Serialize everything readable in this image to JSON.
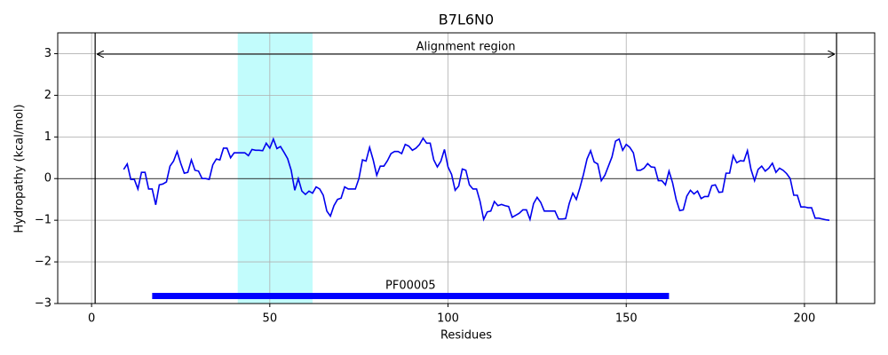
{
  "chart_data": {
    "type": "line",
    "title": "B7L6N0",
    "x_label": "Residues",
    "y_label": "Hydropathy (kcal/mol)",
    "x": [
      9,
      10,
      11,
      12,
      13,
      14,
      15,
      16,
      17,
      18,
      19,
      20,
      21,
      22,
      23,
      24,
      25,
      26,
      27,
      28,
      29,
      30,
      31,
      32,
      33,
      34,
      35,
      36,
      37,
      38,
      39,
      40,
      41,
      42,
      43,
      44,
      45,
      46,
      47,
      48,
      49,
      50,
      51,
      52,
      53,
      54,
      55,
      56,
      57,
      58,
      59,
      60,
      61,
      62,
      63,
      64,
      65,
      66,
      67,
      68,
      69,
      70,
      71,
      72,
      73,
      74,
      75,
      76,
      77,
      78,
      79,
      80,
      81,
      82,
      83,
      84,
      85,
      86,
      87,
      88,
      89,
      90,
      91,
      92,
      93,
      94,
      95,
      96,
      97,
      98,
      99,
      100,
      101,
      102,
      103,
      104,
      105,
      106,
      107,
      108,
      109,
      110,
      111,
      112,
      113,
      114,
      115,
      116,
      117,
      118,
      119,
      120,
      121,
      122,
      123,
      124,
      125,
      126,
      127,
      128,
      129,
      130,
      131,
      132,
      133,
      134,
      135,
      136,
      137,
      138,
      139,
      140,
      141,
      142,
      143,
      144,
      145,
      146,
      147,
      148,
      149,
      150,
      151,
      152,
      153,
      154,
      155,
      156,
      157,
      158,
      159,
      160,
      161,
      162,
      163,
      164,
      165,
      166,
      167,
      168,
      169,
      170,
      171,
      172,
      173,
      174,
      175,
      176,
      177,
      178,
      179,
      180,
      181,
      182,
      183,
      184,
      185,
      186,
      187,
      188,
      189,
      190,
      191,
      192,
      193,
      194,
      195,
      196,
      197,
      198,
      199,
      200,
      201,
      202,
      203,
      204,
      205,
      206,
      207
    ],
    "values": [
      0.22,
      0.35,
      -0.02,
      -0.02,
      -0.25,
      0.15,
      0.15,
      -0.25,
      -0.25,
      -0.63,
      -0.15,
      -0.13,
      -0.08,
      0.3,
      0.42,
      0.65,
      0.37,
      0.13,
      0.15,
      0.45,
      0.2,
      0.18,
      0.0,
      0.0,
      -0.02,
      0.33,
      0.47,
      0.45,
      0.73,
      0.73,
      0.5,
      0.62,
      0.62,
      0.62,
      0.62,
      0.55,
      0.7,
      0.68,
      0.68,
      0.67,
      0.85,
      0.73,
      0.95,
      0.72,
      0.77,
      0.63,
      0.48,
      0.2,
      -0.28,
      0.0,
      -0.3,
      -0.38,
      -0.3,
      -0.35,
      -0.2,
      -0.25,
      -0.4,
      -0.78,
      -0.9,
      -0.65,
      -0.5,
      -0.47,
      -0.2,
      -0.25,
      -0.25,
      -0.25,
      0.0,
      0.45,
      0.42,
      0.75,
      0.45,
      0.08,
      0.3,
      0.3,
      0.43,
      0.6,
      0.65,
      0.65,
      0.6,
      0.82,
      0.78,
      0.68,
      0.73,
      0.82,
      0.97,
      0.85,
      0.85,
      0.45,
      0.28,
      0.42,
      0.7,
      0.28,
      0.1,
      -0.28,
      -0.18,
      0.23,
      0.2,
      -0.15,
      -0.25,
      -0.25,
      -0.55,
      -0.98,
      -0.8,
      -0.78,
      -0.55,
      -0.65,
      -0.62,
      -0.65,
      -0.67,
      -0.93,
      -0.88,
      -0.83,
      -0.75,
      -0.75,
      -0.98,
      -0.6,
      -0.45,
      -0.57,
      -0.78,
      -0.78,
      -0.78,
      -0.78,
      -0.97,
      -0.97,
      -0.96,
      -0.6,
      -0.35,
      -0.5,
      -0.22,
      0.1,
      0.47,
      0.67,
      0.4,
      0.35,
      -0.05,
      0.08,
      0.3,
      0.52,
      0.9,
      0.95,
      0.68,
      0.82,
      0.75,
      0.62,
      0.2,
      0.2,
      0.25,
      0.36,
      0.28,
      0.27,
      -0.05,
      -0.05,
      -0.15,
      0.18,
      -0.1,
      -0.5,
      -0.77,
      -0.75,
      -0.42,
      -0.28,
      -0.37,
      -0.3,
      -0.48,
      -0.43,
      -0.43,
      -0.17,
      -0.15,
      -0.33,
      -0.32,
      0.13,
      0.13,
      0.55,
      0.38,
      0.43,
      0.42,
      0.67,
      0.22,
      -0.05,
      0.22,
      0.3,
      0.18,
      0.25,
      0.37,
      0.15,
      0.25,
      0.2,
      0.12,
      0.0,
      -0.4,
      -0.4,
      -0.68,
      -0.68,
      -0.7,
      -0.7,
      -0.95,
      -0.95,
      -0.97,
      -0.99,
      -1.0
    ],
    "color": "#0000ee",
    "xlim": [
      -9.5,
      219.7
    ],
    "ylim": [
      -3,
      3.5
    ],
    "xticks": [
      0,
      50,
      100,
      150,
      200
    ],
    "yticks": [
      {
        "value": -3,
        "label": "−3"
      },
      {
        "value": -2,
        "label": "−2"
      },
      {
        "value": -1,
        "label": "−1"
      },
      0,
      1,
      2,
      3
    ],
    "grid": true,
    "shaded_region": {
      "start": 41,
      "end": 62,
      "color": "#c2fcfc"
    },
    "alignment_region": {
      "label": "Alignment region",
      "start": 1,
      "end": 209
    },
    "domain": {
      "label": "PF00005",
      "start": 17,
      "end": 162,
      "color": "#0000ff"
    }
  }
}
